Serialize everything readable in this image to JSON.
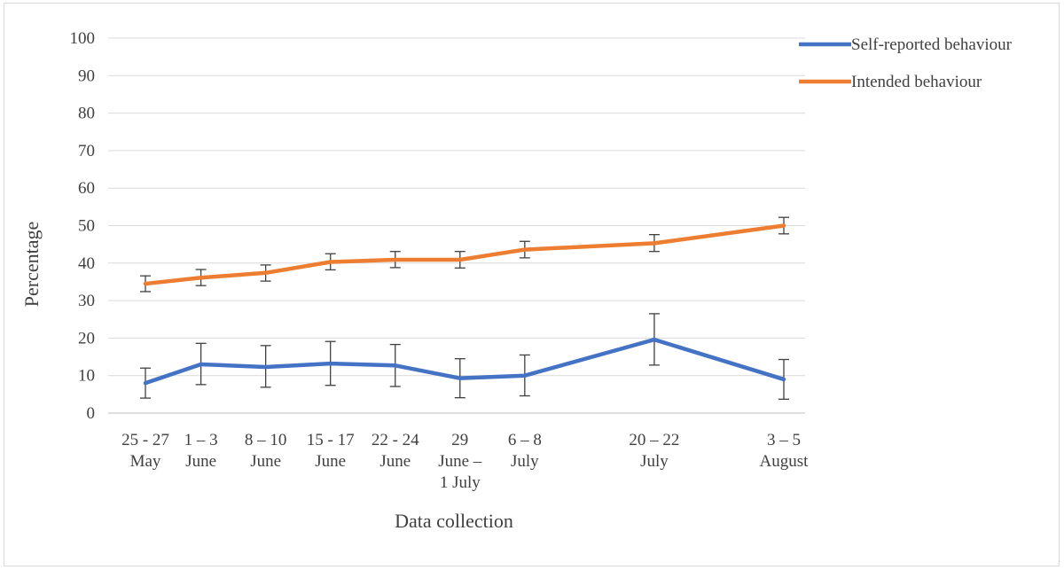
{
  "chart_data": {
    "type": "line",
    "title": "",
    "xlabel": "Data collection",
    "ylabel": "Percentage",
    "ylim": [
      0,
      100
    ],
    "yticks": [
      0,
      10,
      20,
      30,
      40,
      50,
      60,
      70,
      80,
      90,
      100
    ],
    "grid": true,
    "legend_position": "top-right",
    "categories": [
      [
        "25 - 27",
        "May"
      ],
      [
        "1 – 3",
        "June"
      ],
      [
        "8 – 10",
        "June"
      ],
      [
        "15 - 17",
        "June"
      ],
      [
        "22 - 24",
        "June"
      ],
      [
        "29",
        "June –",
        "1 July"
      ],
      [
        "6 – 8",
        "July"
      ],
      [
        "20 – 22",
        "July"
      ],
      [
        "3 – 5",
        "August"
      ]
    ],
    "x_days": [
      0,
      6,
      13,
      20,
      27,
      34,
      41,
      55,
      69
    ],
    "series": [
      {
        "name": "Self-reported behaviour",
        "color": "#4472c4",
        "values": [
          8,
          13,
          12.3,
          13.2,
          12.7,
          9.3,
          10,
          19.6,
          9
        ],
        "err_low": [
          4,
          7.6,
          6.9,
          7.4,
          7.1,
          4.1,
          4.6,
          12.8,
          3.7
        ],
        "err_high": [
          12,
          18.6,
          18,
          19.1,
          18.3,
          14.5,
          15.5,
          26.5,
          14.3
        ]
      },
      {
        "name": "Intended behaviour",
        "color": "#ed7d31",
        "values": [
          34.5,
          36.1,
          37.4,
          40.3,
          40.9,
          40.9,
          43.6,
          45.3,
          50
        ],
        "err_low": [
          32.4,
          34,
          35.2,
          38.2,
          38.8,
          38.7,
          41.4,
          43.1,
          47.8
        ],
        "err_high": [
          36.6,
          38.3,
          39.5,
          42.5,
          43.1,
          43.1,
          45.8,
          47.6,
          52.2
        ]
      }
    ]
  }
}
